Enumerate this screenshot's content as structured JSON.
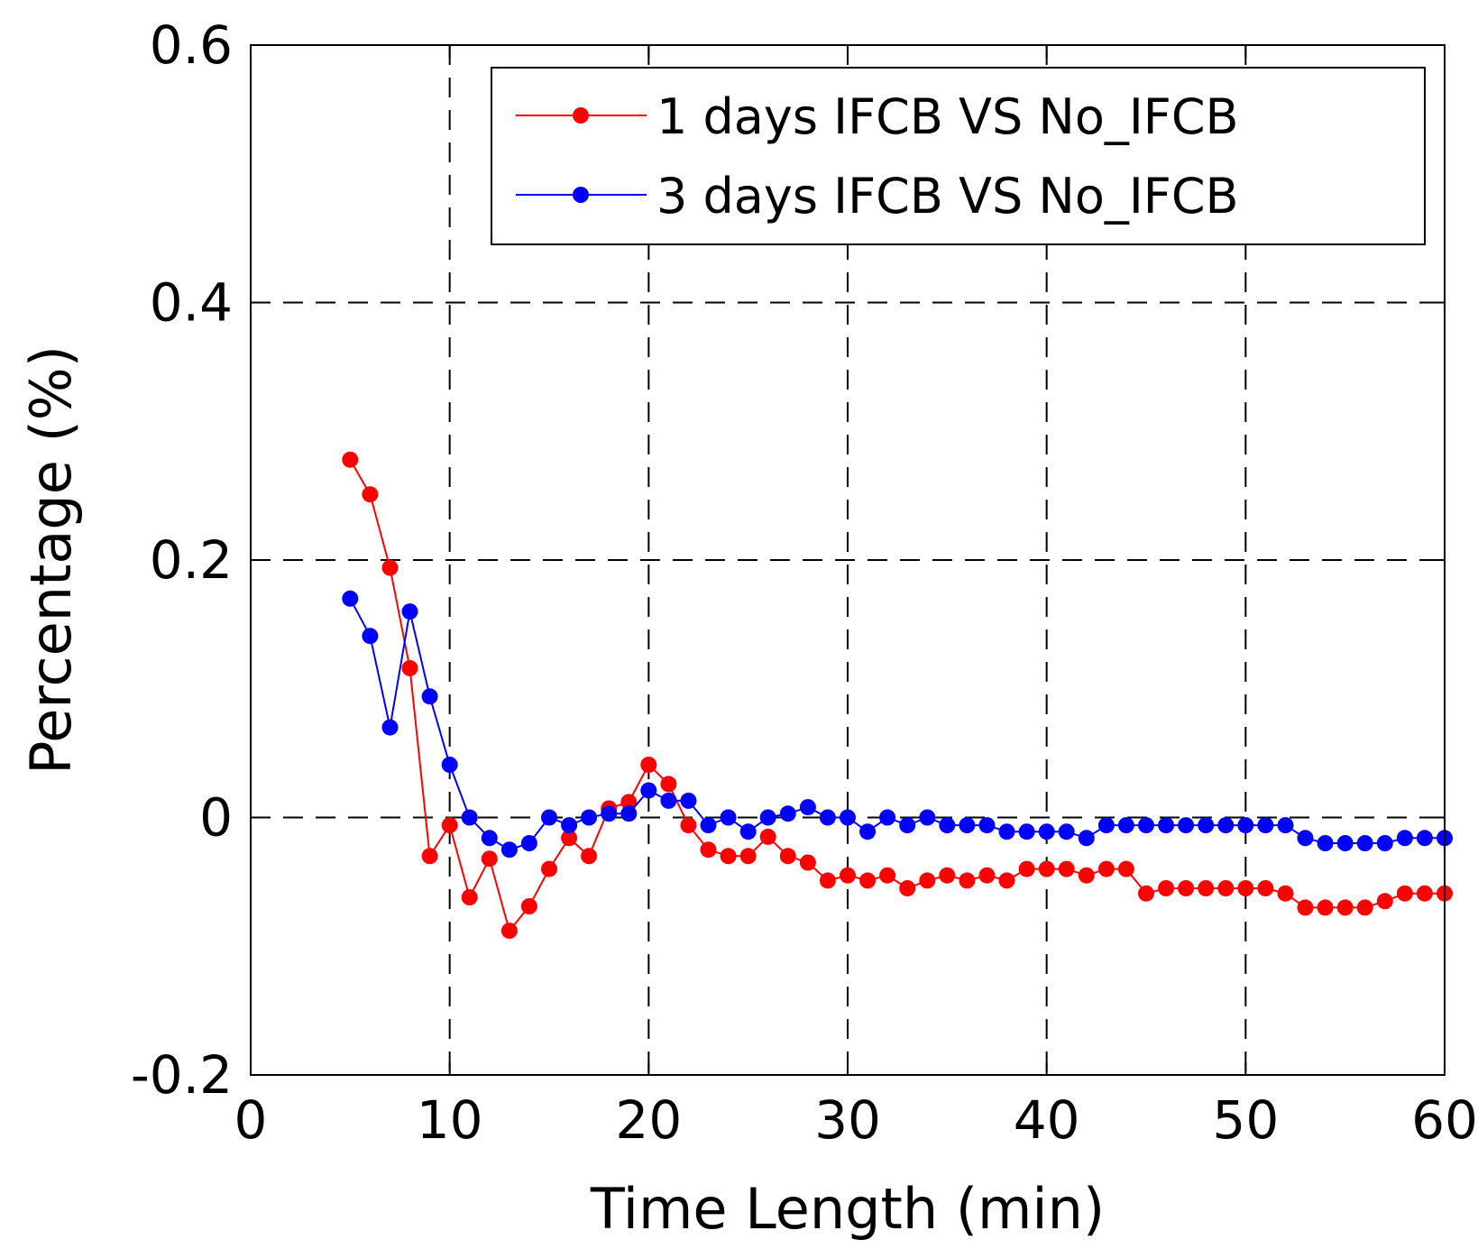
{
  "chart_data": {
    "type": "line",
    "title": "",
    "xlabel": "Time Length (min)",
    "ylabel": "Percentage (%)",
    "xlim": [
      0,
      60
    ],
    "ylim": [
      -0.2,
      0.6
    ],
    "xticks": [
      0,
      10,
      20,
      30,
      40,
      50,
      60
    ],
    "xtick_labels": [
      "0",
      "10",
      "20",
      "30",
      "40",
      "50",
      "60"
    ],
    "yticks": [
      -0.2,
      0,
      0.2,
      0.4,
      0.6
    ],
    "ytick_labels": [
      "-0.2",
      "0",
      "0.2",
      "0.4",
      "0.6"
    ],
    "grid": true,
    "legend_position": "top-right",
    "x": [
      5,
      6,
      7,
      8,
      9,
      10,
      11,
      12,
      13,
      14,
      15,
      16,
      17,
      18,
      19,
      20,
      21,
      22,
      23,
      24,
      25,
      26,
      27,
      28,
      29,
      30,
      31,
      32,
      33,
      34,
      35,
      36,
      37,
      38,
      39,
      40,
      41,
      42,
      43,
      44,
      45,
      46,
      47,
      48,
      49,
      50,
      51,
      52,
      53,
      54,
      55,
      56,
      57,
      58,
      59,
      60
    ],
    "series": [
      {
        "name": "1 days IFCB VS No_IFCB",
        "color": "#ff0000",
        "values": [
          0.278,
          0.251,
          0.194,
          0.116,
          -0.03,
          -0.006,
          -0.062,
          -0.032,
          -0.088,
          -0.069,
          -0.04,
          -0.016,
          -0.03,
          0.007,
          0.012,
          0.041,
          0.026,
          -0.006,
          -0.025,
          -0.03,
          -0.03,
          -0.015,
          -0.03,
          -0.035,
          -0.049,
          -0.045,
          -0.049,
          -0.045,
          -0.055,
          -0.049,
          -0.045,
          -0.049,
          -0.045,
          -0.049,
          -0.04,
          -0.04,
          -0.04,
          -0.045,
          -0.04,
          -0.04,
          -0.059,
          -0.055,
          -0.055,
          -0.055,
          -0.055,
          -0.055,
          -0.055,
          -0.059,
          -0.07,
          -0.07,
          -0.07,
          -0.07,
          -0.065,
          -0.059,
          -0.059,
          -0.059
        ]
      },
      {
        "name": "3 days IFCB VS No_IFCB",
        "color": "#0000ff",
        "values": [
          0.17,
          0.141,
          0.07,
          0.16,
          0.094,
          0.041,
          0.0,
          -0.016,
          -0.025,
          -0.02,
          0.0,
          -0.006,
          0.0,
          0.003,
          0.003,
          0.021,
          0.013,
          0.013,
          -0.006,
          0.0,
          -0.011,
          0.0,
          0.003,
          0.008,
          0.0,
          0.0,
          -0.011,
          0.0,
          -0.006,
          0.0,
          -0.006,
          -0.006,
          -0.006,
          -0.011,
          -0.011,
          -0.011,
          -0.011,
          -0.016,
          -0.006,
          -0.006,
          -0.006,
          -0.006,
          -0.006,
          -0.006,
          -0.006,
          -0.006,
          -0.006,
          -0.006,
          -0.016,
          -0.02,
          -0.02,
          -0.02,
          -0.02,
          -0.016,
          -0.016,
          -0.016
        ]
      }
    ]
  }
}
